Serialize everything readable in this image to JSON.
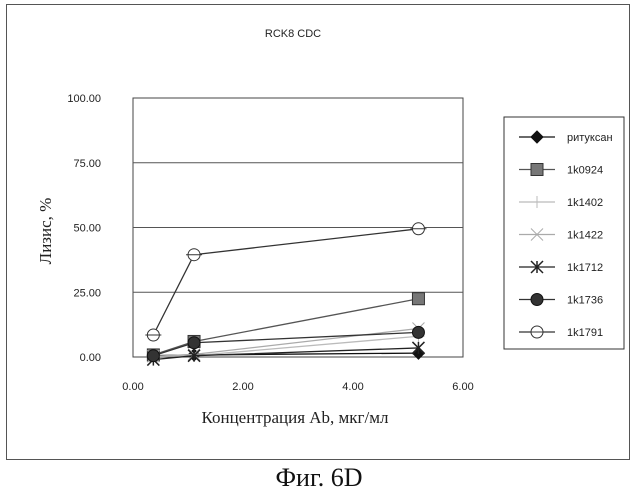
{
  "caption": "Фиг. 6D",
  "chart_data": {
    "type": "scatter",
    "title": "RCK8  CDC",
    "xlabel": "Концентрация Ab, мкг/мл",
    "ylabel": "Лизис, %",
    "xlim": [
      0,
      6
    ],
    "ylim": [
      0,
      100
    ],
    "x_ticks": [
      "0.00",
      "2.00",
      "4.00",
      "6.00"
    ],
    "y_ticks": [
      "0.00",
      "25.00",
      "50.00",
      "75.00",
      "100.00"
    ],
    "grid": "horizontal",
    "legend_position": "right",
    "series": [
      {
        "name": "ритуксан",
        "marker": "diamond",
        "color": "#111111",
        "x": [
          0.37,
          1.11,
          5.19
        ],
        "y": [
          0.5,
          0.8,
          1.5
        ]
      },
      {
        "name": "1k0924",
        "marker": "square",
        "color": "#555555",
        "x": [
          0.37,
          1.11,
          5.19
        ],
        "y": [
          0.8,
          6,
          22.5
        ]
      },
      {
        "name": "1k1402",
        "marker": "plus",
        "color": "#bbbbbb",
        "x": [
          0.37,
          1.11,
          5.19
        ],
        "y": [
          0.2,
          0.5,
          8
        ]
      },
      {
        "name": "1k1422",
        "marker": "x",
        "color": "#aaaaaa",
        "x": [
          0.37,
          1.11,
          5.19
        ],
        "y": [
          0.3,
          1,
          11
        ]
      },
      {
        "name": "1k1712",
        "marker": "star",
        "color": "#222222",
        "x": [
          0.37,
          1.11,
          5.19
        ],
        "y": [
          -1,
          0.5,
          3.5
        ]
      },
      {
        "name": "1k1736",
        "marker": "circle-filled",
        "color": "#333333",
        "x": [
          0.37,
          1.11,
          5.19
        ],
        "y": [
          0.5,
          5.5,
          9.5
        ]
      },
      {
        "name": "1k1791",
        "marker": "circle-open",
        "color": "#333333",
        "x": [
          0.37,
          1.11,
          5.19
        ],
        "y": [
          8.5,
          39.5,
          49.5
        ]
      }
    ]
  }
}
